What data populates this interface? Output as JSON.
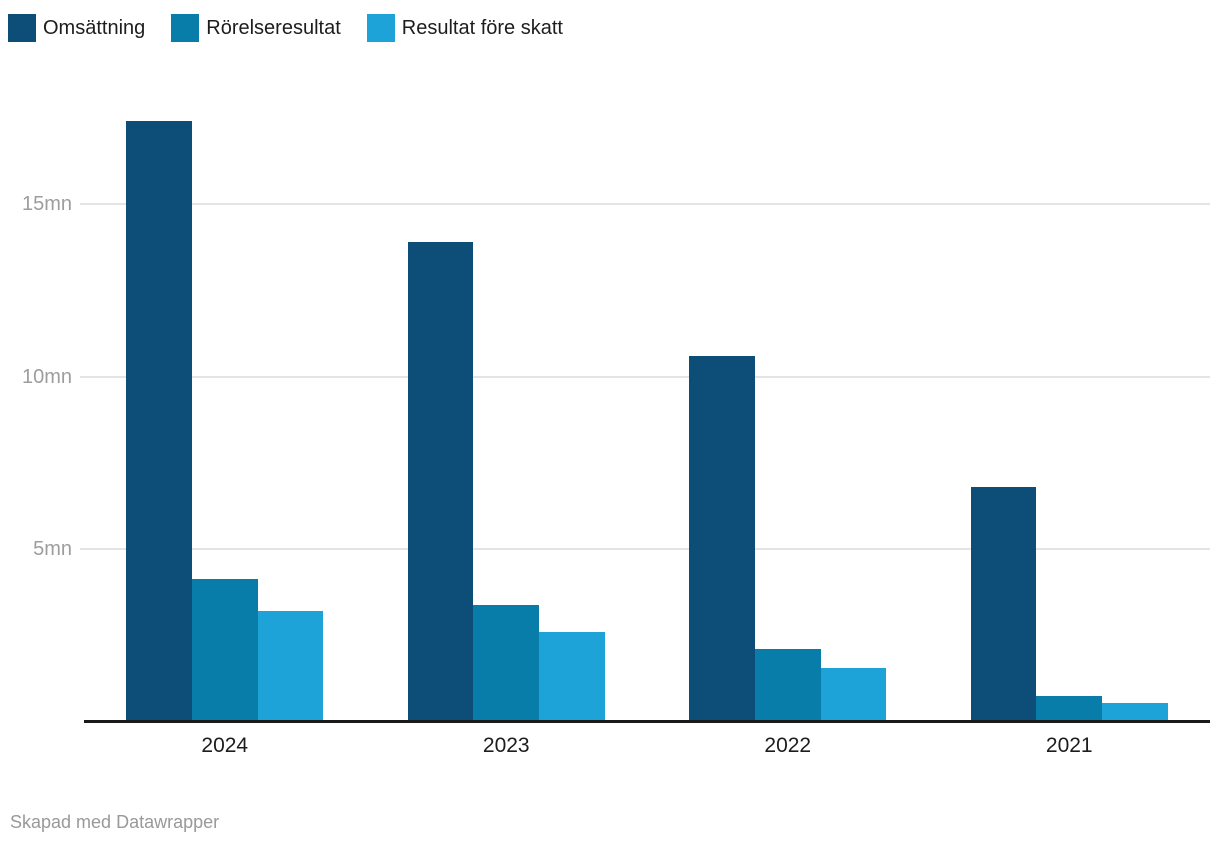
{
  "chart_data": {
    "type": "bar",
    "title": "",
    "categories": [
      "2024",
      "2023",
      "2022",
      "2021"
    ],
    "series": [
      {
        "name": "Omsättning",
        "color": "#0d4e78",
        "values": [
          17.4,
          13.9,
          10.6,
          6.8
        ]
      },
      {
        "name": "Rörelseresultat",
        "color": "#087daa",
        "values": [
          4.15,
          3.4,
          2.1,
          0.75
        ]
      },
      {
        "name": "Resultat före skatt",
        "color": "#1da3d8",
        "values": [
          3.2,
          2.6,
          1.55,
          0.55
        ]
      }
    ],
    "xlabel": "",
    "ylabel": "",
    "unit": "mn",
    "y_ticks": [
      {
        "value": 5,
        "label": "5mn"
      },
      {
        "value": 10,
        "label": "10mn"
      },
      {
        "value": 15,
        "label": "15mn"
      }
    ],
    "ylim": [
      0,
      18
    ],
    "grid": "horizontal",
    "legend_position": "top-left"
  },
  "footer": {
    "credit": "Skapad med Datawrapper"
  },
  "colors": {
    "background": "#ffffff",
    "axis_text": "#9d9d9d",
    "label_text": "#1d1d1d",
    "gridline": "#e4e4e4",
    "baseline": "#1a1a1a"
  }
}
